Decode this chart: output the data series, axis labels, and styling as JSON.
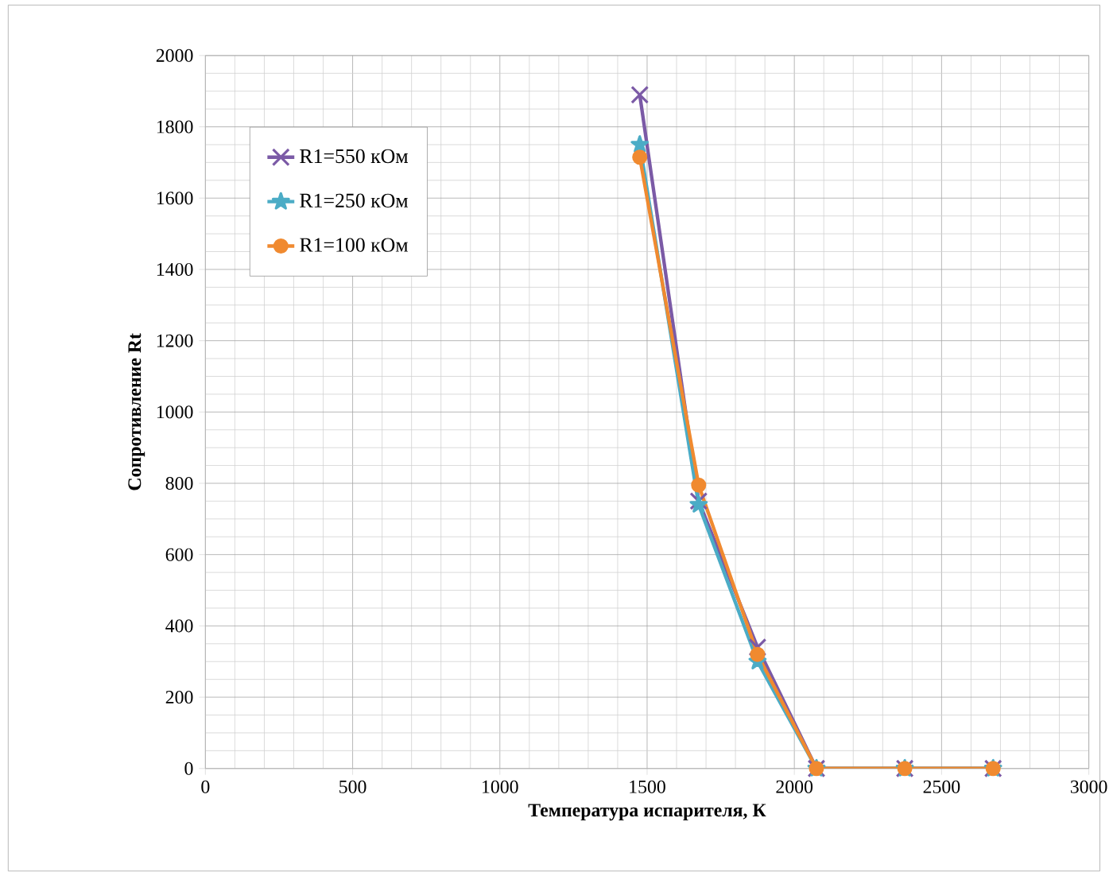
{
  "chart_data": {
    "type": "line",
    "xlabel": "Температура испарителя, К",
    "ylabel": "Сопротивление Rt",
    "xlim": [
      0,
      3000
    ],
    "xticks": [
      0,
      500,
      1000,
      1500,
      2000,
      2500,
      3000
    ],
    "ylim": [
      0,
      2000
    ],
    "yticks": [
      0,
      200,
      400,
      600,
      800,
      1000,
      1200,
      1400,
      1600,
      1800,
      2000
    ],
    "grid": true,
    "legend": "top left",
    "x": [
      1475,
      1675,
      1875,
      2075,
      2375,
      2675
    ],
    "series": [
      {
        "name": "R1=550 кОм",
        "color": "#7b5aa6",
        "marker": "cross",
        "values": [
          1890,
          750,
          340,
          0,
          0,
          0
        ]
      },
      {
        "name": "R1=250 кОм",
        "color": "#4bacc6",
        "marker": "star",
        "values": [
          1750,
          740,
          300,
          0,
          0,
          0
        ]
      },
      {
        "name": "R1=100 кОм",
        "color": "#f08a30",
        "marker": "circle",
        "values": [
          1715,
          795,
          320,
          0,
          0,
          0
        ]
      }
    ]
  }
}
